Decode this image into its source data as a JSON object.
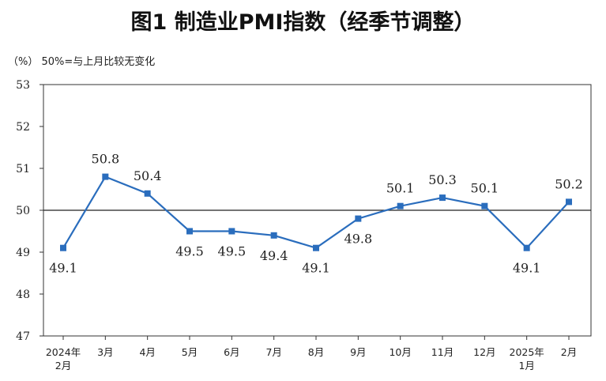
{
  "title": "图1  制造业PMI指数（经季节调整）",
  "unit_note": "（%） 50%=与上月比较无变化",
  "chart_data": {
    "type": "line",
    "title": "图1  制造业PMI指数（经季节调整）",
    "ylabel": "（%）",
    "reference_line": {
      "value": 50,
      "label": "50%=与上月比较无变化"
    },
    "ylim": [
      47,
      53
    ],
    "yticks": [
      "47",
      "48",
      "49",
      "50",
      "51",
      "52",
      "53"
    ],
    "categories": [
      [
        "2024年",
        "2月"
      ],
      [
        "3月"
      ],
      [
        "4月"
      ],
      [
        "5月"
      ],
      [
        "6月"
      ],
      [
        "7月"
      ],
      [
        "8月"
      ],
      [
        "9月"
      ],
      [
        "10月"
      ],
      [
        "11月"
      ],
      [
        "12月"
      ],
      [
        "2025年",
        "1月"
      ],
      [
        "2月"
      ]
    ],
    "values": [
      49.1,
      50.8,
      50.4,
      49.5,
      49.5,
      49.4,
      49.1,
      49.8,
      50.1,
      50.3,
      50.1,
      49.1,
      50.2
    ],
    "labels": [
      "49.1",
      "50.8",
      "50.4",
      "49.5",
      "49.5",
      "49.4",
      "49.1",
      "49.8",
      "50.1",
      "50.3",
      "50.1",
      "49.1",
      "50.2"
    ],
    "label_position": [
      "below",
      "above",
      "above",
      "below",
      "below",
      "below",
      "below",
      "below",
      "above",
      "above",
      "above",
      "below",
      "above"
    ],
    "series_color": "#2a6dbd",
    "grid": false
  }
}
